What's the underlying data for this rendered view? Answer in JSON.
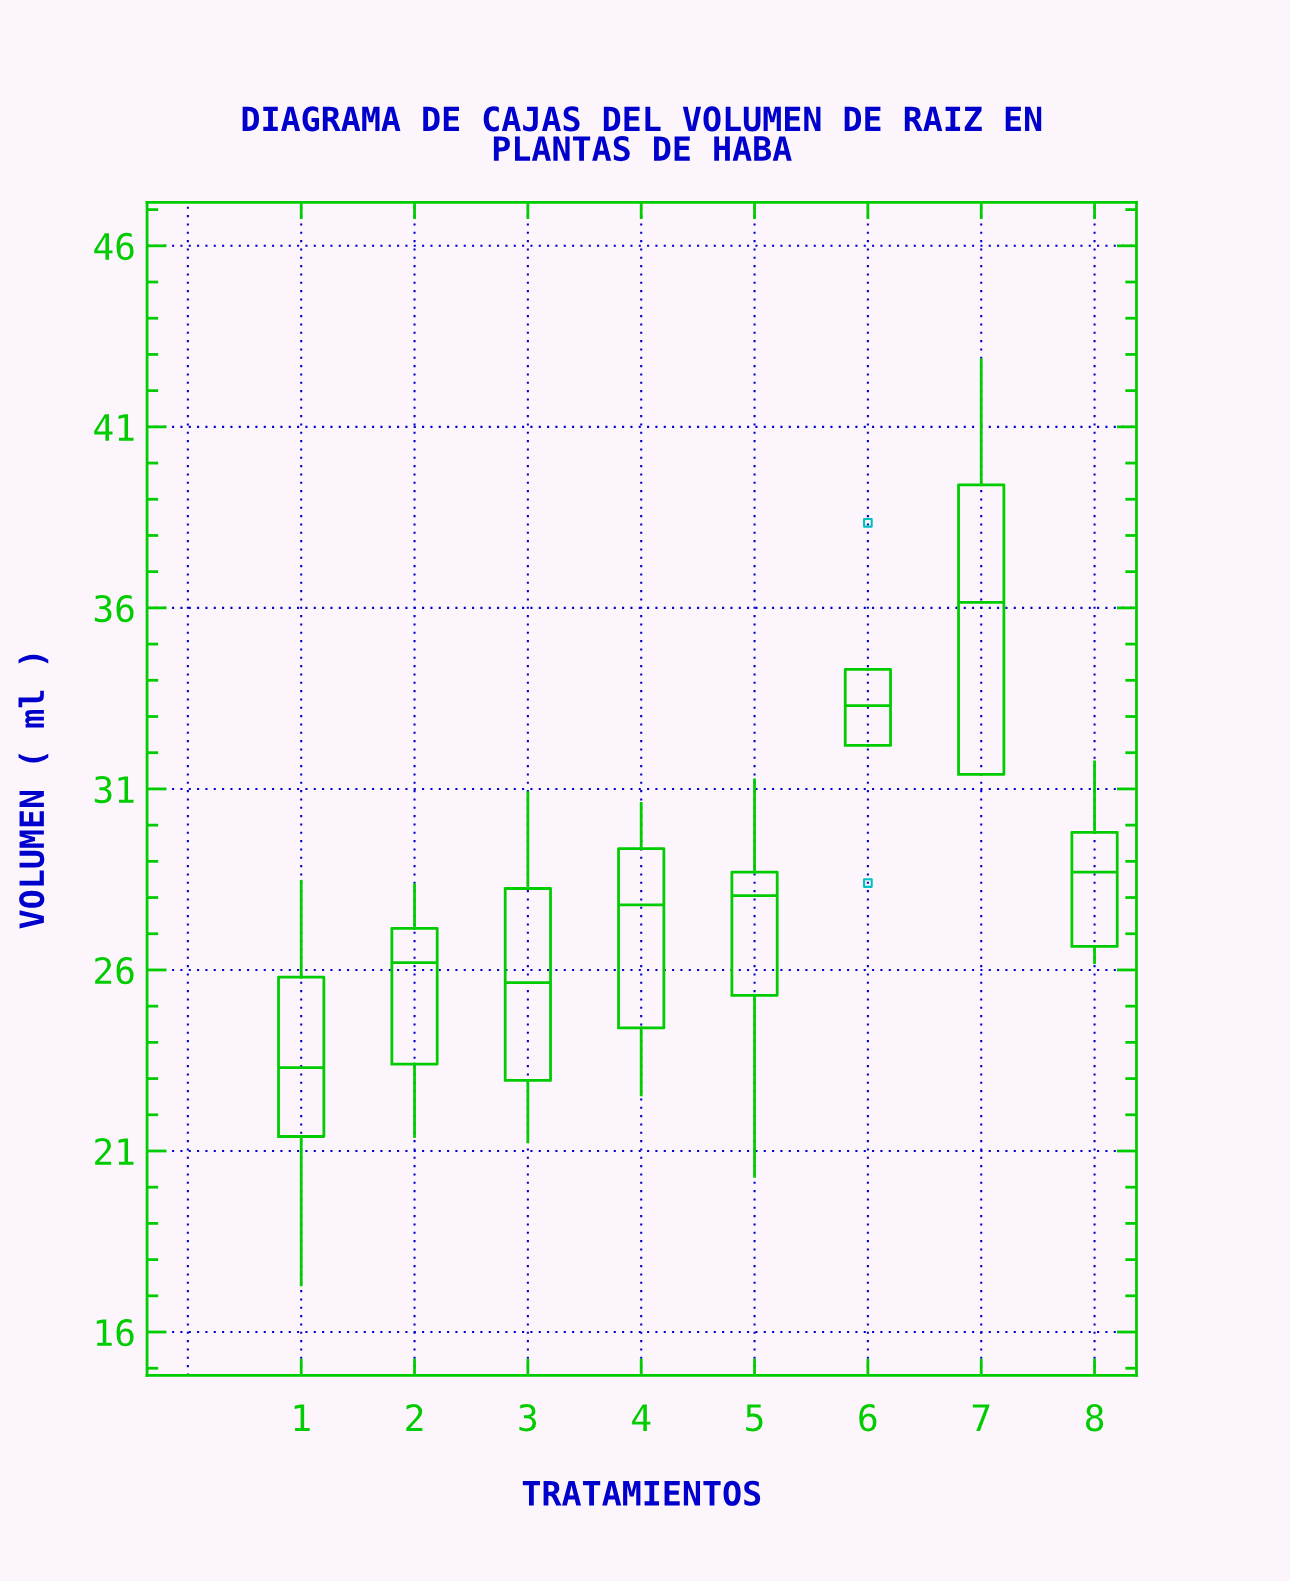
{
  "chart_data": {
    "type": "box",
    "title": "DIAGRAMA DE CAJAS DEL VOLUMEN DE RAIZ EN\nPLANTAS DE HABA",
    "xlabel": "TRATAMIENTOS",
    "ylabel": "VOLUMEN ( ml )",
    "categories": [
      "1",
      "2",
      "3",
      "4",
      "5",
      "6",
      "7",
      "8"
    ],
    "boxes": [
      {
        "low": 17.3,
        "q1": 21.4,
        "median": 23.3,
        "q3": 25.8,
        "high": 28.45
      },
      {
        "low": 21.4,
        "q1": 23.4,
        "median": 26.2,
        "q3": 27.15,
        "high": 28.35
      },
      {
        "low": 21.25,
        "q1": 22.95,
        "median": 25.65,
        "q3": 28.25,
        "high": 30.9
      },
      {
        "low": 22.55,
        "q1": 24.4,
        "median": 27.8,
        "q3": 29.35,
        "high": 30.6
      },
      {
        "low": 20.3,
        "q1": 25.3,
        "median": 28.05,
        "q3": 28.7,
        "high": 31.25
      },
      {
        "low": 32.2,
        "q1": 32.2,
        "median": 33.3,
        "q3": 34.3,
        "high": 34.3
      },
      {
        "low": 31.4,
        "q1": 31.4,
        "median": 36.15,
        "q3": 39.4,
        "high": 42.85
      },
      {
        "low": 26.2,
        "q1": 26.65,
        "median": 28.7,
        "q3": 29.8,
        "high": 31.75
      }
    ],
    "color": "#00cc00",
    "series": [
      {
        "type": "scatter",
        "x": [
          "6",
          "6"
        ],
        "values": [
          38.35,
          28.4
        ],
        "color": "#00c0c0",
        "marker": "square"
      }
    ],
    "ylim": [
      14.8,
      47.2
    ],
    "yticks": [
      16,
      21,
      26,
      31,
      36,
      41,
      46
    ],
    "grid": true
  }
}
